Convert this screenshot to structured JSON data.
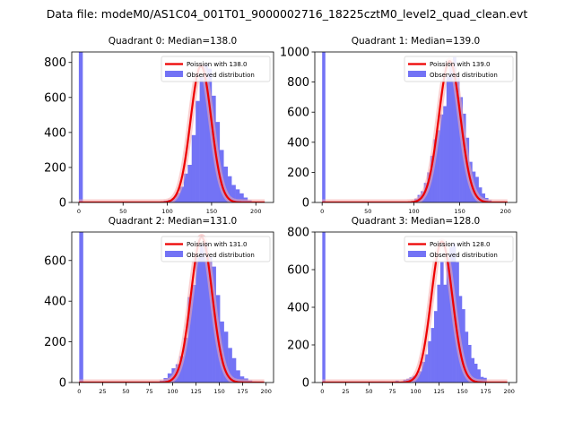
{
  "figure": {
    "suptitle": "Data file: modeM0/AS1C04_001T01_9000002716_18225cztM0_level2_quad_clean.evt"
  },
  "legend": {
    "observed_label": "Observed distribution"
  },
  "colors": {
    "hist": "#7373f5",
    "fit": "#ee0000",
    "fit_glow": "#f5aaaa"
  },
  "chart_data": [
    {
      "type": "bar",
      "title": "Quadrant 0: Median=138.0",
      "fit_label": "Poission with 138.0",
      "median": 138.0,
      "xlim": [
        -8,
        220
      ],
      "ylim": [
        0,
        860
      ],
      "xticks": [
        0,
        50,
        100,
        150,
        200
      ],
      "yticks": [
        0,
        200,
        400,
        600,
        800
      ],
      "peak": 780,
      "sigma": 11.7,
      "spike": {
        "x": 0,
        "width": 4.5,
        "height": 860
      },
      "histogram": {
        "bin_width": 4.5,
        "left_edges": [
          96,
          100.5,
          105,
          109.5,
          114,
          118.5,
          123,
          127.5,
          132,
          136.5,
          141,
          145.5,
          150,
          154.5,
          159,
          163.5,
          168,
          172.5,
          177,
          181.5,
          186,
          190.5,
          195
        ],
        "counts": [
          10,
          15,
          25,
          55,
          90,
          165,
          215,
          385,
          580,
          720,
          790,
          765,
          610,
          460,
          300,
          205,
          150,
          100,
          75,
          52,
          28,
          12,
          5
        ]
      }
    },
    {
      "type": "bar",
      "title": "Quadrant 1: Median=139.0",
      "fit_label": "Poission with 139.0",
      "median": 139.0,
      "xlim": [
        -8,
        212
      ],
      "ylim": [
        0,
        1000
      ],
      "xticks": [
        0,
        50,
        100,
        150,
        200
      ],
      "yticks": [
        0,
        200,
        400,
        600,
        800,
        1000
      ],
      "peak": 940,
      "sigma": 11.8,
      "spike": {
        "x": 0,
        "width": 3.5,
        "height": 1000
      },
      "histogram": {
        "bin_width": 3.5,
        "left_edges": [
          97,
          100.5,
          104,
          107.5,
          111,
          114.5,
          118,
          121.5,
          125,
          128.5,
          132,
          135.5,
          139,
          142.5,
          146,
          149.5,
          153,
          156.5,
          160,
          163.5,
          167,
          170.5,
          174,
          177.5,
          181
        ],
        "counts": [
          10,
          25,
          50,
          75,
          130,
          200,
          310,
          420,
          480,
          585,
          640,
          840,
          920,
          965,
          830,
          700,
          590,
          430,
          270,
          205,
          170,
          100,
          60,
          30,
          15
        ]
      }
    },
    {
      "type": "bar",
      "title": "Quadrant 2: Median=131.0",
      "fit_label": "Poission with 131.0",
      "median": 131.0,
      "xlim": [
        -8,
        208
      ],
      "ylim": [
        0,
        740
      ],
      "xticks": [
        0,
        25,
        50,
        75,
        100,
        125,
        150,
        175,
        200
      ],
      "yticks": [
        0,
        200,
        400,
        600
      ],
      "peak": 715,
      "sigma": 11.4,
      "spike": {
        "x": 0,
        "width": 4.3,
        "height": 740
      },
      "histogram": {
        "bin_width": 4.3,
        "left_edges": [
          86,
          90.3,
          94.6,
          98.9,
          103.2,
          107.5,
          111.8,
          116.1,
          120.4,
          124.7,
          129,
          133.3,
          137.6,
          141.9,
          146.2,
          150.5,
          154.8,
          159.1,
          163.4,
          167.7,
          172,
          176.3,
          180.6,
          184.9
        ],
        "counts": [
          10,
          22,
          45,
          70,
          90,
          130,
          220,
          420,
          480,
          615,
          680,
          690,
          620,
          570,
          430,
          300,
          250,
          170,
          120,
          60,
          30,
          20,
          10,
          5
        ]
      }
    },
    {
      "type": "bar",
      "title": "Quadrant 3: Median=128.0",
      "fit_label": "Poission with 128.0",
      "median": 128.0,
      "xlim": [
        -8,
        208
      ],
      "ylim": [
        0,
        800
      ],
      "xticks": [
        0,
        25,
        50,
        75,
        100,
        125,
        150,
        175,
        200
      ],
      "yticks": [
        0,
        200,
        400,
        600,
        800
      ],
      "peak": 750,
      "sigma": 11.3,
      "spike": {
        "x": 0,
        "width": 3.3,
        "height": 800
      },
      "histogram": {
        "bin_width": 3.3,
        "left_edges": [
          60,
          63.3,
          75,
          78.3,
          86.7,
          90,
          93.3,
          96.6,
          99.9,
          103.2,
          106.5,
          109.8,
          113.1,
          116.4,
          119.7,
          123,
          126.3,
          129.6,
          132.9,
          136.2,
          139.5,
          142.8,
          146.1,
          149.4,
          152.7,
          156,
          159.3,
          162.6,
          165.9,
          169.2,
          172.5
        ],
        "counts": [
          5,
          5,
          5,
          10,
          15,
          20,
          28,
          35,
          45,
          60,
          110,
          150,
          220,
          290,
          380,
          520,
          640,
          520,
          660,
          720,
          740,
          640,
          460,
          390,
          270,
          200,
          130,
          100,
          70,
          30,
          25
        ]
      }
    }
  ]
}
